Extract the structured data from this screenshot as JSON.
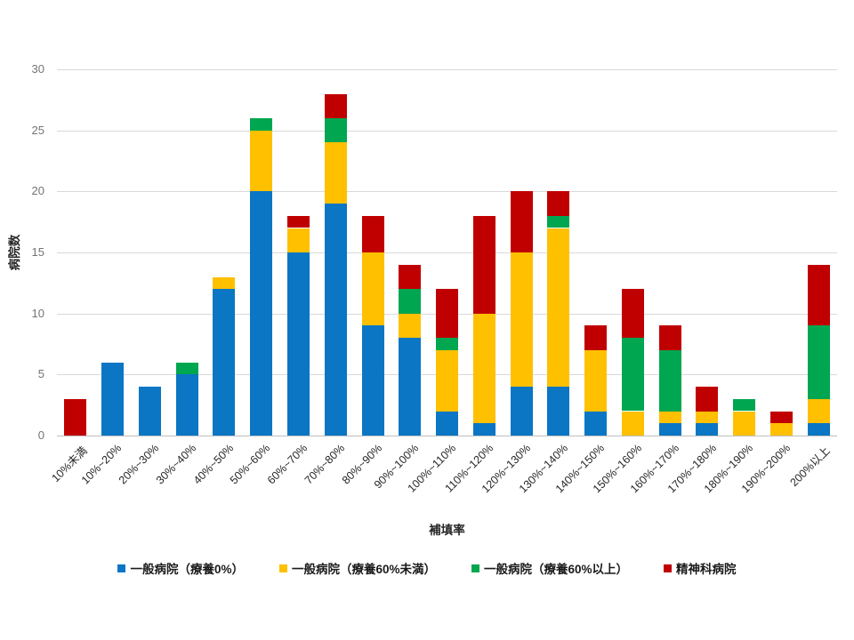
{
  "chart_data": {
    "type": "bar",
    "stacked": true,
    "title": "",
    "xlabel": "補填率",
    "ylabel": "病院数",
    "ylim": [
      0,
      30
    ],
    "yticks": [
      0,
      5,
      10,
      15,
      20,
      25,
      30
    ],
    "grid": true,
    "legend_position": "bottom",
    "categories": [
      "10%未満",
      "10%~20%",
      "20%~30%",
      "30%~40%",
      "40%~50%",
      "50%~60%",
      "60%~70%",
      "70%~80%",
      "80%~90%",
      "90%~100%",
      "100%~110%",
      "110%~120%",
      "120%~130%",
      "130%~140%",
      "140%~150%",
      "150%~160%",
      "160%~170%",
      "170%~180%",
      "180%~190%",
      "190%~200%",
      "200%以上"
    ],
    "series": [
      {
        "name": "一般病院（療養0%）",
        "color": "#0A76C4",
        "values": [
          0,
          6,
          4,
          5,
          12,
          20,
          15,
          19,
          9,
          8,
          2,
          1,
          4,
          4,
          2,
          0,
          1,
          1,
          0,
          0,
          1
        ]
      },
      {
        "name": "一般病院（療養60%未満）",
        "color": "#FFC000",
        "values": [
          0,
          0,
          0,
          0,
          1,
          5,
          2,
          5,
          6,
          2,
          5,
          9,
          11,
          13,
          5,
          2,
          1,
          1,
          2,
          1,
          2
        ]
      },
      {
        "name": "一般病院（療養60%以上）",
        "color": "#00A650",
        "values": [
          0,
          0,
          0,
          1,
          0,
          1,
          0,
          2,
          0,
          2,
          1,
          0,
          0,
          1,
          0,
          6,
          5,
          0,
          1,
          0,
          6
        ]
      },
      {
        "name": "精神科病院",
        "color": "#C00000",
        "values": [
          3,
          0,
          0,
          0,
          0,
          0,
          1,
          2,
          3,
          2,
          4,
          8,
          5,
          2,
          2,
          4,
          2,
          2,
          0,
          1,
          5
        ]
      }
    ],
    "colors": {
      "gridline": "#D9D9D9",
      "axis_line": "#BFBFBF",
      "tick_text": "#737373",
      "label_text": "#262626",
      "background": "#FFFFFF"
    }
  }
}
